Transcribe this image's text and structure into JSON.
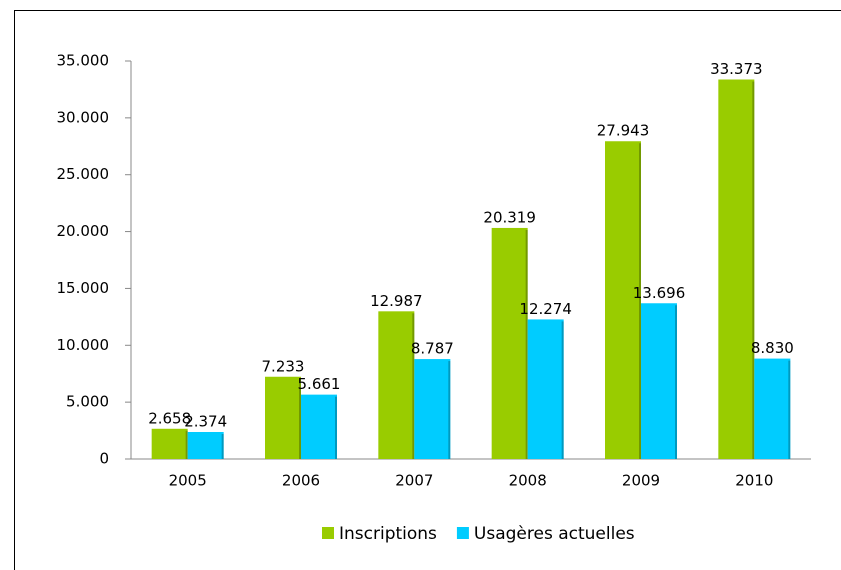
{
  "chart_data": {
    "type": "bar",
    "categories": [
      "2005",
      "2006",
      "2007",
      "2008",
      "2009",
      "2010"
    ],
    "series": [
      {
        "name": "Inscriptions",
        "color": "#99cc00",
        "values": [
          2658,
          7233,
          12987,
          20319,
          27943,
          33373
        ],
        "value_labels": [
          "2.658",
          "7.233",
          "12.987",
          "20.319",
          "27.943",
          "33.373"
        ]
      },
      {
        "name": "Usagères actuelles",
        "color": "#00ccff",
        "values": [
          2374,
          5661,
          8787,
          12274,
          13696,
          8830
        ],
        "value_labels": [
          "2.374",
          "5.661",
          "8.787",
          "12.274",
          "13.696",
          "8.830"
        ]
      }
    ],
    "ylim": [
      0,
      35000
    ],
    "yticks": [
      0,
      {
        "value": 5000,
        "label": "5.000"
      },
      {
        "value": 10000,
        "label": "10.000"
      },
      {
        "value": 15000,
        "label": "15.000"
      },
      {
        "value": 20000,
        "label": "20.000"
      },
      {
        "value": 25000,
        "label": "25.000"
      },
      {
        "value": 30000,
        "label": "30.000"
      },
      {
        "value": 35000,
        "label": "35.000"
      }
    ],
    "grid": false,
    "legend": "bottom"
  }
}
